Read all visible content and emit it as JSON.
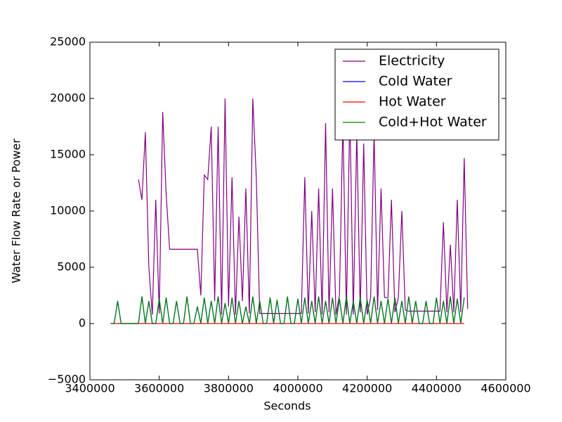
{
  "chart_data": {
    "type": "line",
    "x_label": "Seconds",
    "y_label": "Water Flow Rate or Power",
    "xlim": [
      3400000,
      4600000
    ],
    "xticks": [
      3400000,
      3600000,
      3800000,
      4000000,
      4200000,
      4400000,
      4600000
    ],
    "ylim": [
      -5000,
      25000
    ],
    "yticks": [
      {
        "value": -5000,
        "label": "−5000"
      },
      0,
      5000,
      10000,
      15000,
      20000,
      25000
    ],
    "legend": "upper right",
    "x": [
      3460000,
      3470000,
      3480000,
      3490000,
      3500000,
      3510000,
      3520000,
      3530000,
      3540000,
      3550000,
      3560000,
      3570000,
      3580000,
      3590000,
      3600000,
      3610000,
      3620000,
      3630000,
      3640000,
      3650000,
      3660000,
      3670000,
      3680000,
      3690000,
      3700000,
      3710000,
      3720000,
      3730000,
      3740000,
      3750000,
      3760000,
      3770000,
      3780000,
      3790000,
      3800000,
      3810000,
      3820000,
      3830000,
      3840000,
      3850000,
      3860000,
      3870000,
      3880000,
      3890000,
      3900000,
      3910000,
      3920000,
      3930000,
      3940000,
      3950000,
      3960000,
      3970000,
      3980000,
      3990000,
      4000000,
      4010000,
      4020000,
      4030000,
      4040000,
      4050000,
      4060000,
      4070000,
      4080000,
      4090000,
      4100000,
      4110000,
      4120000,
      4130000,
      4140000,
      4150000,
      4160000,
      4170000,
      4180000,
      4190000,
      4200000,
      4210000,
      4220000,
      4230000,
      4240000,
      4250000,
      4260000,
      4270000,
      4280000,
      4290000,
      4300000,
      4310000,
      4320000,
      4330000,
      4340000,
      4350000,
      4360000,
      4370000,
      4380000,
      4390000,
      4400000,
      4410000,
      4420000,
      4430000,
      4440000,
      4450000,
      4460000,
      4470000,
      4480000,
      4490000
    ],
    "series": [
      {
        "name": "Electricity",
        "color": "#800080",
        "values": [
          null,
          null,
          null,
          null,
          null,
          null,
          null,
          null,
          12800,
          11000,
          17000,
          5000,
          800,
          11000,
          900,
          18800,
          11500,
          6600,
          6600,
          6600,
          6600,
          6600,
          6600,
          6600,
          6600,
          6600,
          2500,
          13200,
          12800,
          17500,
          2000,
          17500,
          800,
          20000,
          1500,
          13000,
          800,
          9500,
          2000,
          12000,
          900,
          20000,
          13000,
          900,
          900,
          900,
          900,
          900,
          900,
          900,
          900,
          900,
          900,
          900,
          900,
          900,
          13000,
          900,
          10000,
          1000,
          12000,
          800,
          17800,
          1000,
          12000,
          800,
          2500,
          18000,
          800,
          19000,
          800,
          17000,
          1000,
          16000,
          800,
          2300,
          17000,
          1200,
          12000,
          2300,
          2300,
          11000,
          1000,
          2300,
          10000,
          1200,
          1100,
          1100,
          1100,
          1100,
          1100,
          1100,
          1100,
          1100,
          1100,
          1100,
          9000,
          1000,
          7000,
          1000,
          11000,
          1000,
          14700,
          1300
        ]
      },
      {
        "name": "Cold Water",
        "color": "#0000ff",
        "values": [
          0,
          0,
          2000,
          0,
          0,
          0,
          0,
          0,
          0,
          2400,
          0,
          2000,
          0,
          0,
          2200,
          0,
          2300,
          0,
          0,
          2000,
          0,
          0,
          2400,
          0,
          0,
          1500,
          0,
          2300,
          0,
          2000,
          0,
          2400,
          0,
          1800,
          0,
          2300,
          0,
          2000,
          0,
          1500,
          0,
          2400,
          0,
          2000,
          0,
          0,
          2300,
          0,
          2100,
          0,
          0,
          2400,
          0,
          0,
          2200,
          0,
          2300,
          0,
          2000,
          0,
          2400,
          0,
          2000,
          0,
          2300,
          0,
          2200,
          0,
          2400,
          0,
          2000,
          0,
          2300,
          0,
          2100,
          0,
          2400,
          0,
          2000,
          0,
          2200,
          0,
          2300,
          0,
          2000,
          0,
          2400,
          0,
          2000,
          0,
          0,
          2000,
          0,
          0,
          2300,
          0,
          2000,
          0,
          2400,
          0,
          2200,
          0,
          2300,
          null
        ]
      },
      {
        "name": "Hot Water",
        "color": "#ff0000",
        "values": [
          0,
          0,
          0,
          0,
          0,
          0,
          0,
          0,
          0,
          0,
          0,
          0,
          0,
          0,
          0,
          0,
          0,
          0,
          0,
          0,
          0,
          0,
          0,
          0,
          0,
          0,
          0,
          0,
          0,
          0,
          0,
          0,
          0,
          0,
          0,
          0,
          0,
          0,
          0,
          0,
          0,
          0,
          0,
          0,
          0,
          0,
          0,
          0,
          0,
          0,
          0,
          0,
          0,
          0,
          0,
          0,
          0,
          0,
          0,
          0,
          0,
          0,
          0,
          0,
          0,
          0,
          0,
          0,
          0,
          0,
          0,
          0,
          0,
          0,
          0,
          0,
          0,
          0,
          0,
          0,
          0,
          0,
          0,
          0,
          0,
          0,
          0,
          0,
          0,
          0,
          0,
          0,
          0,
          0,
          0,
          0,
          0,
          0,
          0,
          0,
          0,
          0,
          0,
          null
        ]
      },
      {
        "name": "Cold+Hot Water",
        "color": "#008000",
        "values": [
          0,
          0,
          2000,
          0,
          0,
          0,
          0,
          0,
          0,
          2400,
          0,
          2000,
          0,
          0,
          2200,
          0,
          2300,
          0,
          0,
          2000,
          0,
          0,
          2400,
          0,
          0,
          1500,
          0,
          2300,
          0,
          2000,
          0,
          2400,
          0,
          1800,
          0,
          2300,
          0,
          2000,
          0,
          1500,
          0,
          2400,
          0,
          2000,
          0,
          0,
          2300,
          0,
          2100,
          0,
          0,
          2400,
          0,
          0,
          2200,
          0,
          2300,
          0,
          2000,
          0,
          2400,
          0,
          2000,
          0,
          2300,
          0,
          2200,
          0,
          2400,
          0,
          2000,
          0,
          2300,
          0,
          2100,
          0,
          2400,
          0,
          2000,
          0,
          2200,
          0,
          2300,
          0,
          2000,
          0,
          2400,
          0,
          2000,
          0,
          0,
          2000,
          0,
          0,
          2300,
          0,
          2000,
          0,
          2400,
          0,
          2200,
          0,
          2300,
          null
        ]
      }
    ]
  }
}
